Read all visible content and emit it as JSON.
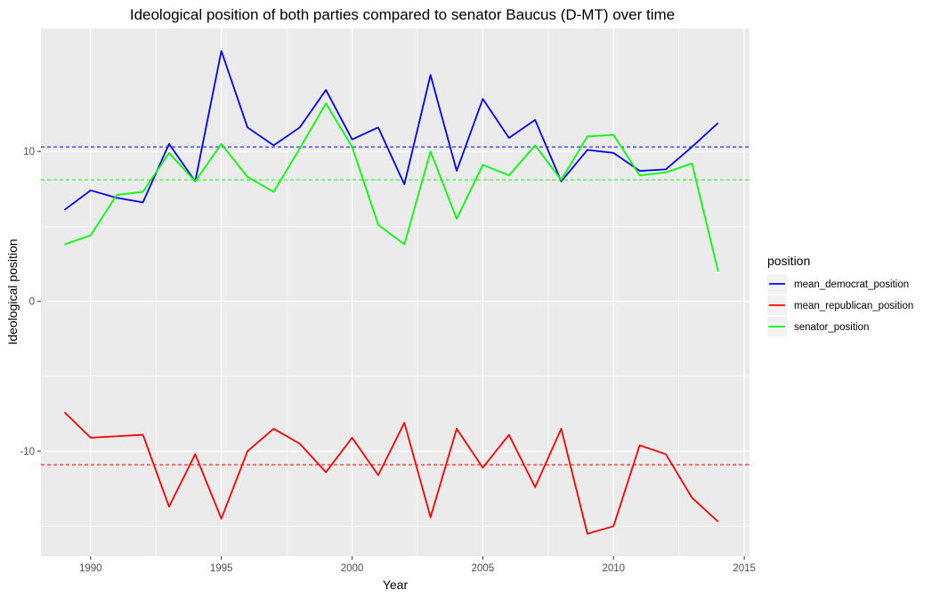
{
  "chart_data": {
    "type": "line",
    "title": "Ideological position of both parties compared to senator Baucus (D-MT) over time",
    "xlabel": "Year",
    "ylabel": "Ideological position",
    "xlim": [
      1988.1,
      2015.2
    ],
    "ylim": [
      -17,
      18.2
    ],
    "x_ticks": [
      1990,
      1995,
      2000,
      2005,
      2010,
      2015
    ],
    "y_ticks": [
      -10,
      0,
      10
    ],
    "grid": true,
    "legend": {
      "title": "position",
      "placement": "right"
    },
    "x": [
      1989,
      1990,
      1991,
      1992,
      1993,
      1994,
      1995,
      1996,
      1997,
      1998,
      1999,
      2000,
      2001,
      2002,
      2003,
      2004,
      2005,
      2006,
      2007,
      2008,
      2009,
      2010,
      2011,
      2012,
      2013,
      2014
    ],
    "series": [
      {
        "name": "mean_democrat_position",
        "color": "#0000ff",
        "values": [
          6.1,
          7.4,
          6.9,
          6.6,
          10.5,
          8.0,
          16.7,
          11.6,
          10.4,
          11.6,
          14.1,
          10.8,
          11.6,
          7.8,
          15.1,
          8.7,
          13.5,
          10.9,
          12.1,
          8.0,
          10.1,
          9.9,
          8.7,
          8.8,
          10.3,
          11.9
        ],
        "mean": 10.3
      },
      {
        "name": "mean_republican_position",
        "color": "#ff0000",
        "values": [
          -7.4,
          -9.1,
          -9.0,
          -8.9,
          -13.7,
          -10.2,
          -14.5,
          -10.0,
          -8.5,
          -9.5,
          -11.4,
          -9.1,
          -11.6,
          -8.1,
          -14.4,
          -8.5,
          -11.1,
          -8.9,
          -12.4,
          -8.5,
          -15.5,
          -15.0,
          -9.6,
          -10.2,
          -13.1,
          -14.7
        ],
        "mean": -10.9
      },
      {
        "name": "senator_position",
        "color": "#00ff00",
        "values": [
          3.8,
          4.4,
          7.1,
          7.3,
          9.9,
          8.0,
          10.5,
          8.3,
          7.3,
          10.2,
          13.2,
          10.3,
          5.1,
          3.8,
          10.0,
          5.5,
          9.1,
          8.4,
          10.4,
          8.1,
          11.0,
          11.1,
          8.4,
          8.6,
          9.2,
          2.0
        ],
        "mean": 8.1
      }
    ]
  }
}
